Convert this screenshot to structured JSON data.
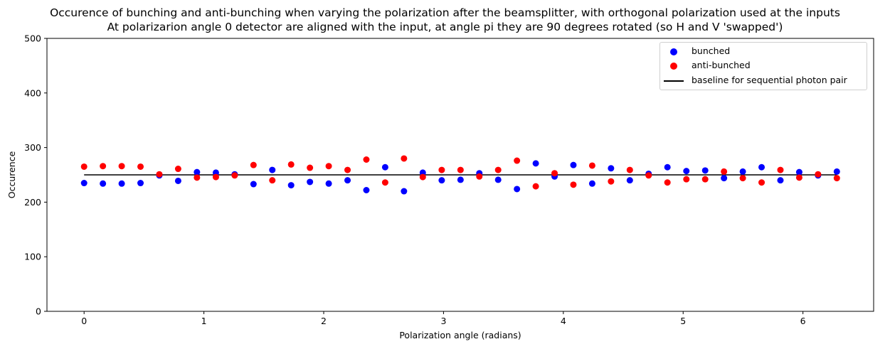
{
  "chart_data": {
    "type": "scatter",
    "title": [
      "Occurence of bunching and anti-bunching when varying the polarization after the beamsplitter, with orthogonal polarization used at the inputs",
      "At polarizarion angle 0 detector are aligned with the input, at angle pi they are 90 degrees rotated (so H and V 'swapped')"
    ],
    "xlabel": "Polarization angle (radians)",
    "ylabel": "Occurence",
    "xlim": [
      -0.31,
      6.59
    ],
    "ylim": [
      0,
      500
    ],
    "xticks": [
      "0",
      "1",
      "2",
      "3",
      "4",
      "5",
      "6"
    ],
    "yticks": [
      "0",
      "100",
      "200",
      "300",
      "400",
      "500"
    ],
    "grid": false,
    "legend_position": "top-right",
    "x": [
      0,
      0.157,
      0.314,
      0.471,
      0.628,
      0.785,
      0.942,
      1.1,
      1.257,
      1.414,
      1.571,
      1.728,
      1.885,
      2.042,
      2.199,
      2.356,
      2.513,
      2.67,
      2.827,
      2.985,
      3.142,
      3.299,
      3.456,
      3.613,
      3.77,
      3.927,
      4.084,
      4.241,
      4.398,
      4.555,
      4.712,
      4.869,
      5.027,
      5.184,
      5.341,
      5.498,
      5.655,
      5.812,
      5.969,
      6.126,
      6.283
    ],
    "series": [
      {
        "name": "bunched",
        "kind": "scatter",
        "color": "#0000ff",
        "values": [
          235,
          234,
          234,
          235,
          249,
          239,
          255,
          254,
          251,
          233,
          259,
          231,
          237,
          234,
          240,
          222,
          264,
          220,
          254,
          240,
          241,
          253,
          241,
          224,
          271,
          247,
          268,
          234,
          262,
          240,
          252,
          264,
          257,
          258,
          244,
          256,
          264,
          240,
          255,
          249,
          256
        ]
      },
      {
        "name": "anti-bunched",
        "kind": "scatter",
        "color": "#ff0000",
        "values": [
          265,
          266,
          266,
          265,
          251,
          261,
          245,
          246,
          249,
          268,
          240,
          269,
          263,
          266,
          259,
          278,
          236,
          280,
          246,
          259,
          259,
          247,
          259,
          276,
          229,
          253,
          232,
          267,
          238,
          259,
          249,
          236,
          242,
          242,
          256,
          244,
          236,
          259,
          245,
          251,
          244
        ]
      },
      {
        "name": "baseline for sequential photon pair",
        "kind": "line",
        "color": "#000000",
        "x": [
          0,
          6.283
        ],
        "values": [
          250,
          250
        ]
      }
    ]
  }
}
